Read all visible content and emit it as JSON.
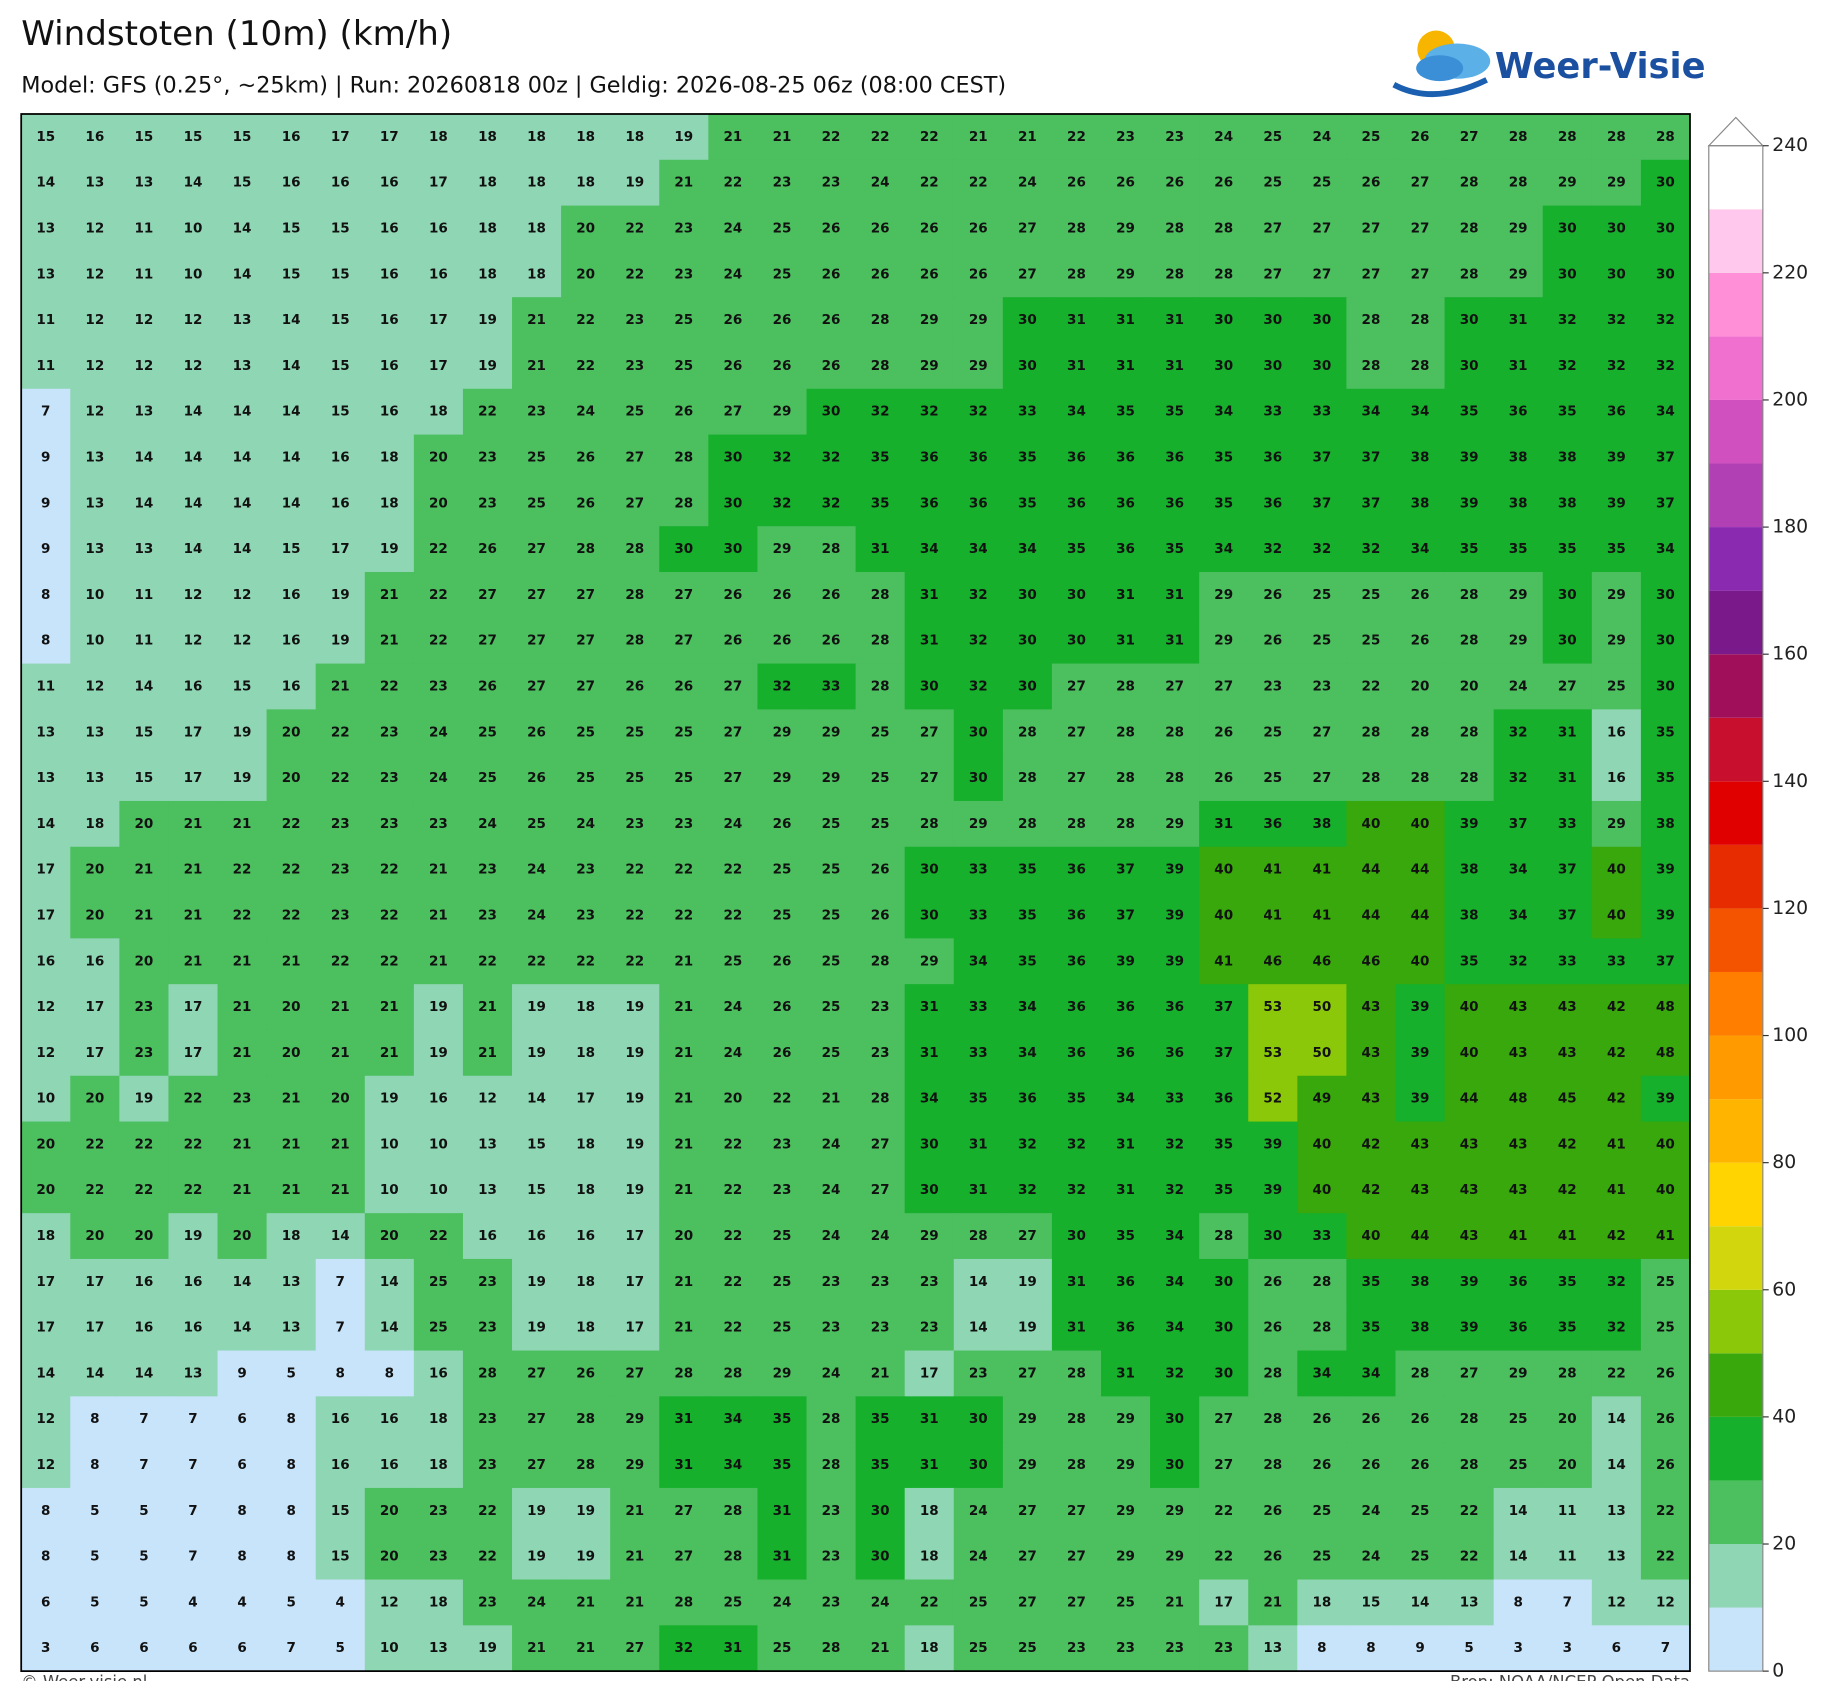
{
  "header": {
    "title": "Windstoten (10m) (km/h)",
    "subtitle": "Model: GFS (0.25°, ~25km)  |  Run: 20260818 00z  |  Geldig: 2026-08-25 06z (08:00 CEST)"
  },
  "logo": "Weer-Visie",
  "grid": {
    "values": [
      [
        15,
        16,
        15,
        15,
        15,
        16,
        17,
        17,
        18,
        18,
        18,
        18,
        18,
        19,
        21,
        21,
        22,
        22,
        22,
        21,
        21,
        22,
        23,
        23,
        24,
        25,
        24,
        25,
        26,
        27,
        28,
        28,
        28,
        28
      ],
      [
        14,
        13,
        13,
        14,
        15,
        16,
        16,
        16,
        17,
        18,
        18,
        18,
        19,
        21,
        22,
        23,
        23,
        24,
        22,
        22,
        24,
        26,
        26,
        26,
        26,
        25,
        25,
        26,
        27,
        28,
        28,
        29,
        29,
        30
      ],
      [
        13,
        12,
        11,
        10,
        14,
        15,
        15,
        16,
        16,
        18,
        18,
        20,
        22,
        23,
        24,
        25,
        26,
        26,
        26,
        26,
        27,
        28,
        29,
        28,
        28,
        27,
        27,
        27,
        27,
        28,
        29,
        30,
        30,
        30
      ],
      [
        13,
        12,
        11,
        10,
        14,
        15,
        15,
        16,
        16,
        18,
        18,
        20,
        22,
        23,
        24,
        25,
        26,
        26,
        26,
        26,
        27,
        28,
        29,
        28,
        28,
        27,
        27,
        27,
        27,
        28,
        29,
        30,
        30,
        30
      ],
      [
        11,
        12,
        12,
        12,
        13,
        14,
        15,
        16,
        17,
        19,
        21,
        22,
        23,
        25,
        26,
        26,
        26,
        28,
        29,
        29,
        30,
        31,
        31,
        31,
        30,
        30,
        30,
        28,
        28,
        30,
        31,
        32,
        32,
        32
      ],
      [
        11,
        12,
        12,
        12,
        13,
        14,
        15,
        16,
        17,
        19,
        21,
        22,
        23,
        25,
        26,
        26,
        26,
        28,
        29,
        29,
        30,
        31,
        31,
        31,
        30,
        30,
        30,
        28,
        28,
        30,
        31,
        32,
        32,
        32
      ],
      [
        7,
        12,
        13,
        14,
        14,
        14,
        15,
        16,
        18,
        22,
        23,
        24,
        25,
        26,
        27,
        29,
        30,
        32,
        32,
        32,
        33,
        34,
        35,
        35,
        34,
        33,
        33,
        34,
        34,
        35,
        36,
        35,
        36,
        34
      ],
      [
        9,
        13,
        14,
        14,
        14,
        14,
        16,
        18,
        20,
        23,
        25,
        26,
        27,
        28,
        30,
        32,
        32,
        35,
        36,
        36,
        35,
        36,
        36,
        36,
        35,
        36,
        37,
        37,
        38,
        39,
        38,
        38,
        39,
        37
      ],
      [
        9,
        13,
        14,
        14,
        14,
        14,
        16,
        18,
        20,
        23,
        25,
        26,
        27,
        28,
        30,
        32,
        32,
        35,
        36,
        36,
        35,
        36,
        36,
        36,
        35,
        36,
        37,
        37,
        38,
        39,
        38,
        38,
        39,
        37
      ],
      [
        9,
        13,
        13,
        14,
        14,
        15,
        17,
        19,
        22,
        26,
        27,
        28,
        28,
        30,
        30,
        29,
        28,
        31,
        34,
        34,
        34,
        35,
        36,
        35,
        34,
        32,
        32,
        32,
        34,
        35,
        35,
        35,
        35,
        34
      ],
      [
        8,
        10,
        11,
        12,
        12,
        16,
        19,
        21,
        22,
        27,
        27,
        27,
        28,
        27,
        26,
        26,
        26,
        28,
        31,
        32,
        30,
        30,
        31,
        31,
        29,
        26,
        25,
        25,
        26,
        28,
        29,
        30,
        29,
        30
      ],
      [
        8,
        10,
        11,
        12,
        12,
        16,
        19,
        21,
        22,
        27,
        27,
        27,
        28,
        27,
        26,
        26,
        26,
        28,
        31,
        32,
        30,
        30,
        31,
        31,
        29,
        26,
        25,
        25,
        26,
        28,
        29,
        30,
        29,
        30
      ],
      [
        11,
        12,
        14,
        16,
        15,
        16,
        21,
        22,
        23,
        26,
        27,
        27,
        26,
        26,
        27,
        32,
        33,
        28,
        30,
        32,
        30,
        27,
        28,
        27,
        27,
        23,
        23,
        22,
        20,
        20,
        24,
        27,
        25,
        30
      ],
      [
        13,
        13,
        15,
        17,
        19,
        20,
        22,
        23,
        24,
        25,
        26,
        25,
        25,
        25,
        27,
        29,
        29,
        25,
        27,
        30,
        28,
        27,
        28,
        28,
        26,
        25,
        27,
        28,
        28,
        28,
        32,
        31,
        16,
        35
      ],
      [
        13,
        13,
        15,
        17,
        19,
        20,
        22,
        23,
        24,
        25,
        26,
        25,
        25,
        25,
        27,
        29,
        29,
        25,
        27,
        30,
        28,
        27,
        28,
        28,
        26,
        25,
        27,
        28,
        28,
        28,
        32,
        31,
        16,
        35
      ],
      [
        14,
        18,
        20,
        21,
        21,
        22,
        23,
        23,
        23,
        24,
        25,
        24,
        23,
        23,
        24,
        26,
        25,
        25,
        28,
        29,
        28,
        28,
        28,
        29,
        31,
        36,
        38,
        40,
        40,
        39,
        37,
        33,
        29,
        38
      ],
      [
        17,
        20,
        21,
        21,
        22,
        22,
        23,
        22,
        21,
        23,
        24,
        23,
        22,
        22,
        22,
        25,
        25,
        26,
        30,
        33,
        35,
        36,
        37,
        39,
        40,
        41,
        41,
        44,
        44,
        38,
        34,
        37,
        40,
        39
      ],
      [
        17,
        20,
        21,
        21,
        22,
        22,
        23,
        22,
        21,
        23,
        24,
        23,
        22,
        22,
        22,
        25,
        25,
        26,
        30,
        33,
        35,
        36,
        37,
        39,
        40,
        41,
        41,
        44,
        44,
        38,
        34,
        37,
        40,
        39
      ],
      [
        16,
        16,
        20,
        21,
        21,
        21,
        22,
        22,
        21,
        22,
        22,
        22,
        22,
        21,
        25,
        26,
        25,
        28,
        29,
        34,
        35,
        36,
        39,
        39,
        41,
        46,
        46,
        46,
        40,
        35,
        32,
        33,
        33,
        37
      ],
      [
        12,
        17,
        23,
        17,
        21,
        20,
        21,
        21,
        19,
        21,
        19,
        18,
        19,
        21,
        24,
        26,
        25,
        23,
        31,
        33,
        34,
        36,
        36,
        36,
        37,
        53,
        50,
        43,
        39,
        40,
        43,
        43,
        42,
        48
      ],
      [
        12,
        17,
        23,
        17,
        21,
        20,
        21,
        21,
        19,
        21,
        19,
        18,
        19,
        21,
        24,
        26,
        25,
        23,
        31,
        33,
        34,
        36,
        36,
        36,
        37,
        53,
        50,
        43,
        39,
        40,
        43,
        43,
        42,
        48
      ],
      [
        10,
        20,
        19,
        22,
        23,
        21,
        20,
        19,
        16,
        12,
        14,
        17,
        19,
        21,
        20,
        22,
        21,
        28,
        34,
        35,
        36,
        35,
        34,
        33,
        36,
        52,
        49,
        43,
        39,
        44,
        48,
        45,
        42,
        39
      ],
      [
        20,
        22,
        22,
        22,
        21,
        21,
        21,
        10,
        10,
        13,
        15,
        18,
        19,
        21,
        22,
        23,
        24,
        27,
        30,
        31,
        32,
        32,
        31,
        32,
        35,
        39,
        40,
        42,
        43,
        43,
        43,
        42,
        41,
        40
      ],
      [
        20,
        22,
        22,
        22,
        21,
        21,
        21,
        10,
        10,
        13,
        15,
        18,
        19,
        21,
        22,
        23,
        24,
        27,
        30,
        31,
        32,
        32,
        31,
        32,
        35,
        39,
        40,
        42,
        43,
        43,
        43,
        42,
        41,
        40
      ],
      [
        18,
        20,
        20,
        19,
        20,
        18,
        14,
        20,
        22,
        16,
        16,
        16,
        17,
        20,
        22,
        25,
        24,
        24,
        29,
        28,
        27,
        30,
        35,
        34,
        28,
        30,
        33,
        40,
        44,
        43,
        41,
        41,
        42,
        41
      ],
      [
        17,
        17,
        16,
        16,
        14,
        13,
        7,
        14,
        25,
        23,
        19,
        18,
        17,
        21,
        22,
        25,
        23,
        23,
        23,
        14,
        19,
        31,
        36,
        34,
        30,
        26,
        28,
        35,
        38,
        39,
        36,
        35,
        32,
        25
      ],
      [
        17,
        17,
        16,
        16,
        14,
        13,
        7,
        14,
        25,
        23,
        19,
        18,
        17,
        21,
        22,
        25,
        23,
        23,
        23,
        14,
        19,
        31,
        36,
        34,
        30,
        26,
        28,
        35,
        38,
        39,
        36,
        35,
        32,
        25
      ],
      [
        14,
        14,
        14,
        13,
        9,
        5,
        8,
        8,
        16,
        28,
        27,
        26,
        27,
        28,
        28,
        29,
        24,
        21,
        17,
        23,
        27,
        28,
        31,
        32,
        30,
        28,
        34,
        34,
        28,
        27,
        29,
        28,
        22,
        26
      ],
      [
        12,
        8,
        7,
        7,
        6,
        8,
        16,
        16,
        18,
        23,
        27,
        28,
        29,
        31,
        34,
        35,
        28,
        35,
        31,
        30,
        29,
        28,
        29,
        30,
        27,
        28,
        26,
        26,
        26,
        28,
        25,
        20,
        14,
        26
      ],
      [
        12,
        8,
        7,
        7,
        6,
        8,
        16,
        16,
        18,
        23,
        27,
        28,
        29,
        31,
        34,
        35,
        28,
        35,
        31,
        30,
        29,
        28,
        29,
        30,
        27,
        28,
        26,
        26,
        26,
        28,
        25,
        20,
        14,
        26
      ],
      [
        8,
        5,
        5,
        7,
        8,
        8,
        15,
        20,
        23,
        22,
        19,
        19,
        21,
        27,
        28,
        31,
        23,
        30,
        18,
        24,
        27,
        27,
        29,
        29,
        22,
        26,
        25,
        24,
        25,
        22,
        14,
        11,
        13,
        22
      ],
      [
        8,
        5,
        5,
        7,
        8,
        8,
        15,
        20,
        23,
        22,
        19,
        19,
        21,
        27,
        28,
        31,
        23,
        30,
        18,
        24,
        27,
        27,
        29,
        29,
        22,
        26,
        25,
        24,
        25,
        22,
        14,
        11,
        13,
        22
      ],
      [
        6,
        5,
        5,
        4,
        4,
        5,
        4,
        12,
        18,
        23,
        24,
        21,
        21,
        28,
        25,
        24,
        23,
        24,
        22,
        25,
        27,
        27,
        25,
        21,
        17,
        21,
        18,
        15,
        14,
        13,
        8,
        7,
        12,
        12
      ],
      [
        3,
        6,
        6,
        6,
        6,
        7,
        5,
        10,
        13,
        19,
        21,
        21,
        27,
        32,
        31,
        25,
        28,
        21,
        18,
        25,
        25,
        23,
        23,
        23,
        23,
        13,
        8,
        8,
        9,
        5,
        3,
        3,
        6,
        7
      ]
    ]
  },
  "colorbar": {
    "levels": [
      0,
      10,
      20,
      30,
      40,
      50,
      60,
      70,
      80,
      90,
      100,
      110,
      120,
      130,
      140,
      150,
      160,
      170,
      180,
      190,
      200,
      210,
      220,
      230,
      240
    ],
    "colors": [
      "#c8e4fa",
      "#8fd6b4",
      "#4cbf5f",
      "#16b02c",
      "#38a80c",
      "#8cc80a",
      "#d2d60c",
      "#ffd400",
      "#ffb400",
      "#ff9a00",
      "#ff7e00",
      "#f45400",
      "#e62c00",
      "#e00000",
      "#c8102e",
      "#a0105a",
      "#7a1a8a",
      "#8a2ab0",
      "#b040b4",
      "#d050c0",
      "#f070d0",
      "#ff90d8",
      "#ffc8ec",
      "#ffffff"
    ],
    "ticks": [
      0,
      20,
      40,
      60,
      80,
      100,
      120,
      140,
      160,
      180,
      200,
      220,
      240
    ]
  },
  "footer": {
    "left": "© Weer-visie.nl",
    "right": "Bron: NOAA/NCEP Open Data"
  }
}
